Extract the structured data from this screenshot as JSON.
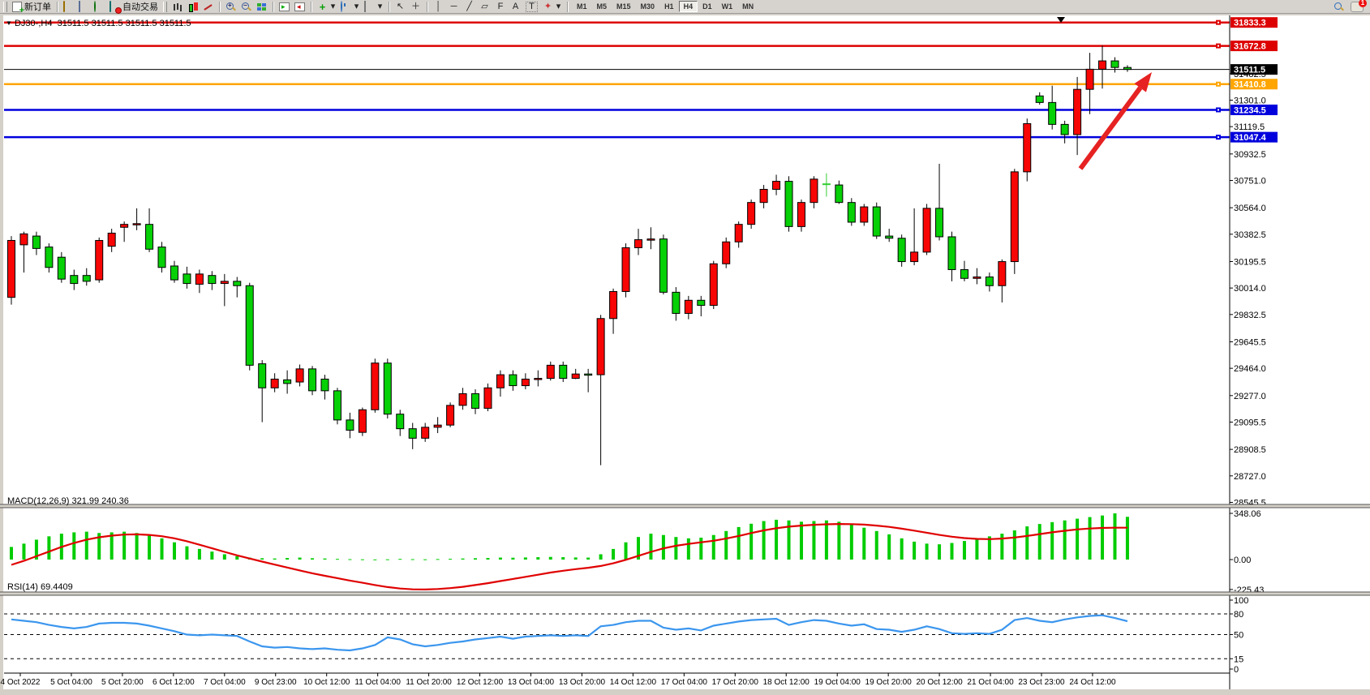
{
  "toolbar": {
    "new_order_label": "新订单",
    "autotrade_label": "自动交易",
    "timeframes": [
      "M1",
      "M5",
      "M15",
      "M30",
      "H1",
      "H4",
      "D1",
      "W1",
      "MN"
    ],
    "active_timeframe": "H4",
    "notification_count": "1"
  },
  "chart": {
    "header": {
      "symbol": "DJ30-,H4",
      "quotes": "31511.5 31511.5 31511.5 31511.5"
    },
    "macd_label": {
      "name": "MACD(12,26,9)",
      "values": "321.99 240.36"
    },
    "rsi_label": {
      "name": "RSI(14)",
      "value": "69.4409"
    }
  },
  "chart_data": {
    "type": "candlestick",
    "symbol": "DJ30-",
    "timeframe": "H4",
    "title": "DJ30-,H4",
    "ylim": [
      28537,
      31876
    ],
    "grid": false,
    "current_price": 31511.5,
    "price_ticks": [
      "31482.5",
      "31301.0",
      "31119.5",
      "30932.5",
      "30751.0",
      "30564.0",
      "30382.5",
      "30195.5",
      "30014.0",
      "29832.5",
      "29645.5",
      "29464.0",
      "29277.0",
      "29095.5",
      "28908.5",
      "28727.0",
      "28545.5"
    ],
    "time_labels": [
      "4 Oct 2022",
      "5 Oct 04:00",
      "5 Oct 20:00",
      "6 Oct 12:00",
      "7 Oct 04:00",
      "9 Oct 23:00",
      "10 Oct 12:00",
      "11 Oct 04:00",
      "11 Oct 20:00",
      "12 Oct 12:00",
      "13 Oct 04:00",
      "13 Oct 20:00",
      "14 Oct 12:00",
      "17 Oct 04:00",
      "17 Oct 20:00",
      "18 Oct 12:00",
      "19 Oct 04:00",
      "19 Oct 20:00",
      "20 Oct 12:00",
      "21 Oct 04:00",
      "23 Oct 23:00",
      "24 Oct 12:00"
    ],
    "hlines": [
      {
        "price": 31833.3,
        "label": "31833.3",
        "color": "#dd0000",
        "width": 2.5,
        "handle": true
      },
      {
        "price": 31672.8,
        "label": "31672.8",
        "color": "#dd0000",
        "width": 2.5,
        "handle": true
      },
      {
        "price": 31511.5,
        "label": "31511.5",
        "color": "#000000",
        "width": 1,
        "handle": false,
        "current": true
      },
      {
        "price": 31410.8,
        "label": "31410.8",
        "color": "#ffa500",
        "width": 2.5,
        "handle": true
      },
      {
        "price": 31234.5,
        "label": "31234.5",
        "color": "#0000dd",
        "width": 2.5,
        "handle": true
      },
      {
        "price": 31047.4,
        "label": "31047.4",
        "color": "#0000dd",
        "width": 2.5,
        "handle": true
      }
    ],
    "candles": [
      [
        29950,
        30370,
        29900,
        30340
      ],
      [
        30310,
        30400,
        30120,
        30385
      ],
      [
        30370,
        30400,
        30240,
        30285
      ],
      [
        30295,
        30320,
        30120,
        30155
      ],
      [
        30225,
        30260,
        30050,
        30075
      ],
      [
        30100,
        30140,
        30000,
        30045
      ],
      [
        30100,
        30150,
        30030,
        30060
      ],
      [
        30070,
        30360,
        30050,
        30340
      ],
      [
        30300,
        30420,
        30260,
        30390
      ],
      [
        30430,
        30470,
        30330,
        30450
      ],
      [
        30450,
        30560,
        30410,
        30455
      ],
      [
        30450,
        30560,
        30260,
        30280
      ],
      [
        30295,
        30330,
        30120,
        30155
      ],
      [
        30165,
        30200,
        30050,
        30070
      ],
      [
        30110,
        30160,
        30010,
        30045
      ],
      [
        30040,
        30140,
        29980,
        30110
      ],
      [
        30100,
        30130,
        30000,
        30045
      ],
      [
        30045,
        30110,
        29890,
        30060
      ],
      [
        30060,
        30090,
        29950,
        30030
      ],
      [
        30030,
        30050,
        29450,
        29485
      ],
      [
        29495,
        29520,
        29095,
        29330
      ],
      [
        29330,
        29430,
        29300,
        29390
      ],
      [
        29385,
        29450,
        29290,
        29360
      ],
      [
        29370,
        29490,
        29340,
        29460
      ],
      [
        29460,
        29480,
        29280,
        29310
      ],
      [
        29390,
        29420,
        29250,
        29310
      ],
      [
        29310,
        29330,
        29080,
        29110
      ],
      [
        29110,
        29160,
        28985,
        29040
      ],
      [
        29025,
        29195,
        29000,
        29180
      ],
      [
        29180,
        29530,
        29160,
        29500
      ],
      [
        29500,
        29530,
        29120,
        29150
      ],
      [
        29150,
        29180,
        29000,
        29050
      ],
      [
        29050,
        29090,
        28910,
        28985
      ],
      [
        28985,
        29090,
        28960,
        29060
      ],
      [
        29060,
        29130,
        29020,
        29075
      ],
      [
        29075,
        29230,
        29060,
        29210
      ],
      [
        29210,
        29330,
        29180,
        29290
      ],
      [
        29290,
        29320,
        29150,
        29190
      ],
      [
        29190,
        29360,
        29170,
        29330
      ],
      [
        29330,
        29450,
        29270,
        29420
      ],
      [
        29420,
        29450,
        29310,
        29345
      ],
      [
        29345,
        29430,
        29320,
        29390
      ],
      [
        29390,
        29450,
        29340,
        29395
      ],
      [
        29395,
        29510,
        29380,
        29485
      ],
      [
        29485,
        29510,
        29370,
        29395
      ],
      [
        29395,
        29460,
        29390,
        29425
      ],
      [
        29425,
        29460,
        29300,
        29420
      ],
      [
        29420,
        29830,
        28800,
        29805
      ],
      [
        29805,
        30010,
        29700,
        29990
      ],
      [
        29990,
        30320,
        29950,
        30290
      ],
      [
        30290,
        30420,
        30240,
        30345
      ],
      [
        30345,
        30430,
        30280,
        30350
      ],
      [
        30350,
        30380,
        29970,
        29985
      ],
      [
        29985,
        30020,
        29790,
        29840
      ],
      [
        29840,
        29960,
        29800,
        29930
      ],
      [
        29930,
        29960,
        29820,
        29895
      ],
      [
        29895,
        30200,
        29870,
        30180
      ],
      [
        30180,
        30360,
        30150,
        30330
      ],
      [
        30330,
        30470,
        30290,
        30450
      ],
      [
        30450,
        30620,
        30420,
        30600
      ],
      [
        30600,
        30720,
        30560,
        30690
      ],
      [
        30690,
        30790,
        30650,
        30745
      ],
      [
        30745,
        30780,
        30400,
        30435
      ],
      [
        30435,
        30620,
        30400,
        30600
      ],
      [
        30600,
        30780,
        30560,
        30760
      ],
      [
        30725,
        30800,
        30640,
        30725
      ],
      [
        30720,
        30750,
        30590,
        30600
      ],
      [
        30600,
        30630,
        30440,
        30465
      ],
      [
        30465,
        30590,
        30440,
        30570
      ],
      [
        30570,
        30600,
        30350,
        30370
      ],
      [
        30370,
        30420,
        30330,
        30355
      ],
      [
        30355,
        30380,
        30160,
        30195
      ],
      [
        30195,
        30560,
        30170,
        30260
      ],
      [
        30260,
        30590,
        30240,
        30560
      ],
      [
        30560,
        30865,
        30340,
        30365
      ],
      [
        30365,
        30400,
        30060,
        30140
      ],
      [
        30140,
        30200,
        30060,
        30080
      ],
      [
        30080,
        30150,
        30040,
        30090
      ],
      [
        30090,
        30120,
        29990,
        30030
      ],
      [
        30030,
        30210,
        29915,
        30195
      ],
      [
        30195,
        30830,
        30110,
        30810
      ],
      [
        30810,
        31175,
        30745,
        31140
      ],
      [
        31330,
        31355,
        31270,
        31285
      ],
      [
        31285,
        31400,
        31100,
        31135
      ],
      [
        31135,
        31160,
        31005,
        31065
      ],
      [
        31065,
        31460,
        30925,
        31375
      ],
      [
        31375,
        31625,
        31205,
        31513
      ],
      [
        31513,
        31675,
        31380,
        31570
      ],
      [
        31570,
        31595,
        31490,
        31525
      ],
      [
        31525,
        31540,
        31495,
        31511.5
      ]
    ],
    "macd": {
      "name": "MACD(12,26,9)",
      "current_main": 321.99,
      "current_signal": 240.36,
      "axis_labels": [
        "348.06",
        "0.00",
        "-225.43"
      ],
      "histogram": [
        95,
        120,
        150,
        175,
        195,
        205,
        210,
        200,
        205,
        210,
        200,
        185,
        160,
        130,
        100,
        80,
        60,
        40,
        25,
        15,
        10,
        8,
        12,
        15,
        10,
        8,
        5,
        3,
        2,
        1,
        2,
        5,
        3,
        2,
        4,
        6,
        8,
        10,
        12,
        15,
        14,
        16,
        18,
        20,
        18,
        16,
        15,
        40,
        80,
        130,
        170,
        195,
        185,
        170,
        160,
        165,
        185,
        215,
        245,
        270,
        290,
        300,
        295,
        285,
        290,
        295,
        285,
        265,
        240,
        215,
        190,
        160,
        135,
        120,
        115,
        125,
        140,
        160,
        175,
        195,
        220,
        250,
        268,
        282,
        295,
        308,
        320,
        332,
        348.06,
        321.99
      ],
      "signal": [
        -40,
        -10,
        25,
        60,
        95,
        125,
        150,
        168,
        180,
        188,
        190,
        186,
        176,
        160,
        138,
        112,
        85,
        58,
        32,
        8,
        -15,
        -38,
        -60,
        -82,
        -103,
        -122,
        -140,
        -158,
        -175,
        -192,
        -207,
        -218,
        -224,
        -225.43,
        -222,
        -215,
        -205,
        -192,
        -178,
        -162,
        -146,
        -130,
        -114,
        -98,
        -84,
        -72,
        -62,
        -48,
        -28,
        -2,
        28,
        58,
        84,
        104,
        118,
        130,
        142,
        158,
        178,
        200,
        220,
        236,
        248,
        256,
        262,
        266,
        268,
        267,
        263,
        256,
        246,
        233,
        218,
        202,
        186,
        172,
        162,
        156,
        154,
        158,
        166,
        178,
        192,
        205,
        217,
        227,
        234,
        238,
        240,
        240.36
      ]
    },
    "rsi": {
      "name": "RSI(14)",
      "current": 69.4409,
      "axis_labels": [
        "100",
        "80",
        "50",
        "15",
        "0"
      ],
      "levels": [
        80,
        50,
        15
      ],
      "values": [
        72,
        70,
        68,
        64,
        61,
        59,
        61,
        66,
        67,
        67,
        66,
        63,
        59,
        55,
        50,
        49,
        50,
        49,
        48,
        40,
        33,
        31,
        32,
        30,
        29,
        30,
        28,
        27,
        30,
        35,
        46,
        43,
        36,
        33,
        35,
        38,
        40,
        43,
        45,
        47,
        44,
        47,
        48,
        49,
        48,
        49,
        48,
        62,
        64,
        68,
        70,
        70,
        60,
        57,
        59,
        56,
        63,
        66,
        69,
        71,
        72,
        73,
        64,
        68,
        71,
        70,
        66,
        63,
        65,
        58,
        57,
        54,
        57,
        62,
        58,
        52,
        51,
        52,
        51,
        57,
        71,
        74,
        70,
        68,
        72,
        75,
        77,
        78,
        74,
        69.44
      ]
    },
    "annotations": [
      {
        "type": "arrow",
        "from": {
          "x": 1332,
          "y": 191
        },
        "to": {
          "x": 1420,
          "y": 72
        },
        "color": "#e62222"
      }
    ],
    "colors": {
      "up": "#f80505",
      "down": "#06d006",
      "doji": "#32cd32",
      "wick": "#000000",
      "macd_hist": "#00cc00",
      "macd_signal": "#e00000",
      "rsi_line": "#3b96ee",
      "badge_text": "#ffffff",
      "axis_text": "#000000",
      "background": "#ffffff"
    }
  }
}
